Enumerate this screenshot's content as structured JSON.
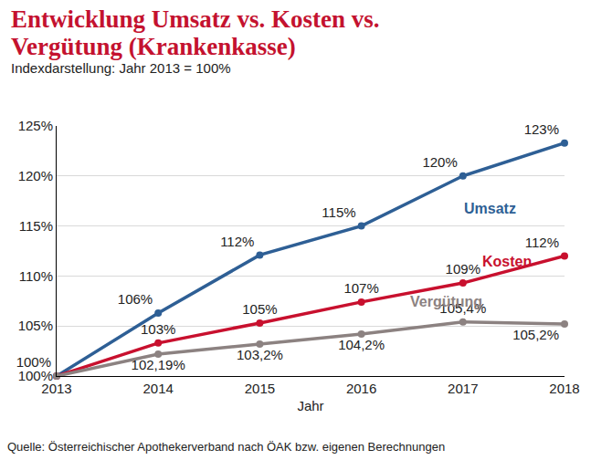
{
  "chart_data": {
    "type": "line",
    "title": "Entwicklung Umsatz vs. Kosten vs. Vergütung (Krankenkasse)",
    "subtitle": "Indexdarstellung: Jahr 2013 = 100%",
    "x_label": "Jahr",
    "source": "Quelle: Österreichischer Apothekerverband nach ÖAK bzw. eigenen Berechnungen",
    "x": [
      2013,
      2014,
      2015,
      2016,
      2017,
      2018
    ],
    "xlim": [
      2013,
      2018
    ],
    "xticks": [
      2013,
      2014,
      2015,
      2016,
      2017,
      2018
    ],
    "ylim": [
      100,
      125
    ],
    "yticks": [
      {
        "value": 100,
        "label": "100%"
      },
      {
        "value": 105,
        "label": "105%"
      },
      {
        "value": 110,
        "label": "110%"
      },
      {
        "value": 115,
        "label": "115%"
      },
      {
        "value": 120,
        "label": "120%"
      },
      {
        "value": 125,
        "label": "125%"
      }
    ],
    "grid": true,
    "data_labels": true,
    "marker": "circle",
    "series": [
      {
        "name": "Umsatz",
        "color": "#2e5f95",
        "values": [
          100,
          106.3,
          112.1,
          115,
          120,
          123.3
        ],
        "value_labels": [
          "100%",
          "106%",
          "112%",
          "115%",
          "120%",
          "123%"
        ]
      },
      {
        "name": "Kosten",
        "color": "#c8102e",
        "values": [
          100,
          103.3,
          105.3,
          107.4,
          109.3,
          112
        ],
        "value_labels": [
          null,
          "103%",
          "105%",
          "107%",
          "109%",
          "112%"
        ]
      },
      {
        "name": "Vergütung",
        "color": "#8c8281",
        "values": [
          100,
          102.19,
          103.2,
          104.2,
          105.4,
          105.2
        ],
        "value_labels": [
          null,
          "102,19%",
          "103,2%",
          "104,2%",
          "105,4%",
          "105,2%"
        ]
      }
    ]
  }
}
